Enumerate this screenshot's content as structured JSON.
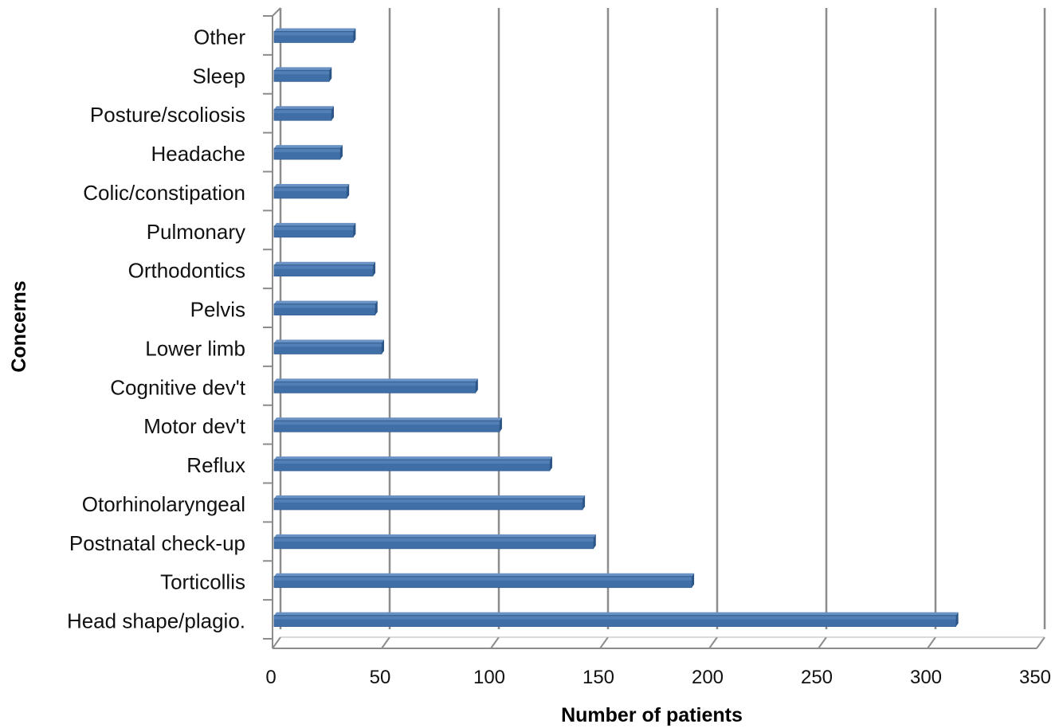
{
  "chart_data": {
    "type": "bar",
    "orientation": "horizontal",
    "style": "3d",
    "title": "",
    "xlabel": "Number of patients",
    "ylabel": "Concerns",
    "xlim": [
      0,
      350
    ],
    "x_ticks": [
      "0",
      "50",
      "100",
      "150",
      "200",
      "250",
      "300",
      "350"
    ],
    "grid": "vertical",
    "legend": "none",
    "bar_color": "#3F6FA6",
    "categories": [
      "Head shape/plagio.",
      "Torticollis",
      "Postnatal check-up",
      "Otorhinolaryngeal",
      "Reflux",
      "Motor dev't",
      "Cognitive dev't",
      "Lower limb",
      "Pelvis",
      "Orthodontics",
      "Pulmonary",
      "Colic/constipation",
      "Headache",
      "Posture/scoliosis",
      "Sleep",
      "Other"
    ],
    "values": [
      313,
      192,
      147,
      142,
      127,
      104,
      93,
      50,
      47,
      46,
      37,
      34,
      31,
      27,
      26,
      37
    ]
  }
}
